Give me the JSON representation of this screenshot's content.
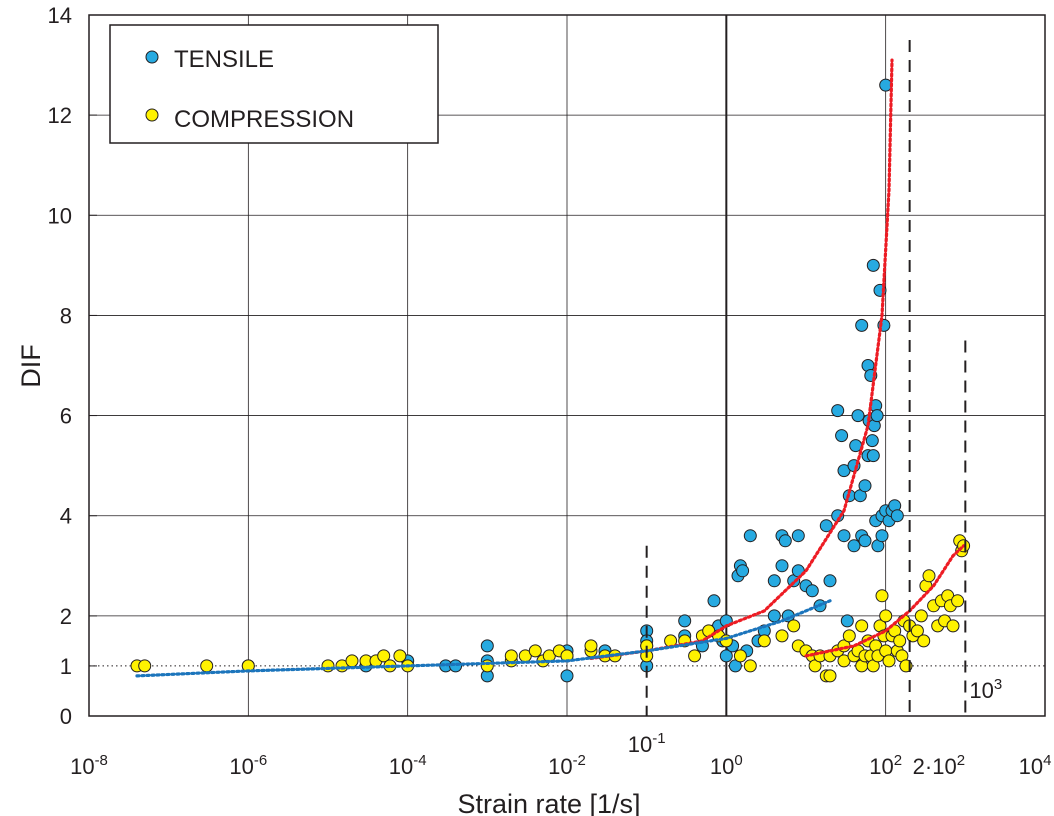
{
  "chart_data": {
    "type": "scatter",
    "title": "",
    "xlabel": "Strain rate [1/s]",
    "ylabel": "DIF",
    "x_scale": "log",
    "xlim": [
      1e-08,
      10000.0
    ],
    "ylim": [
      0,
      14
    ],
    "x_tick_labels": [
      {
        "x": 1e-08,
        "base": "10",
        "exp": "-8"
      },
      {
        "x": 1e-06,
        "base": "10",
        "exp": "-6"
      },
      {
        "x": 0.0001,
        "base": "10",
        "exp": "-4"
      },
      {
        "x": 0.01,
        "base": "10",
        "exp": "-2"
      },
      {
        "x": 1.0,
        "base": "10",
        "exp": "0"
      },
      {
        "x": 100.0,
        "base": "10",
        "exp": "2"
      },
      {
        "x": 10000.0,
        "base": "10",
        "exp": "4"
      }
    ],
    "y_ticks": [
      0,
      1,
      2,
      4,
      6,
      8,
      10,
      12,
      14
    ],
    "grid": true,
    "legend_position": "top-left",
    "colors": {
      "tensile": "#27aae1",
      "compression": "#fff200",
      "marker_edge": "#231f20",
      "fit_red": "#ed1c24",
      "fit_blue": "#1c75bc",
      "grid": "#231f20"
    },
    "annotations": [
      {
        "id": "line-0.1",
        "x": 0.1,
        "y_top": 3.4,
        "base": "10",
        "exp": "-1"
      },
      {
        "id": "line-200",
        "x": 200,
        "y_top": 13.5,
        "label": "2·10",
        "exp": "2"
      },
      {
        "id": "line-1000",
        "x": 1000,
        "y_top": 7.5,
        "base": "10",
        "exp": "3"
      }
    ],
    "reference_line": {
      "y": 1,
      "style": "dotted"
    },
    "series": [
      {
        "name": "TENSILE",
        "marker": "circle",
        "color": "#27aae1",
        "points": [
          [
            1e-06,
            1.0
          ],
          [
            3e-05,
            1.0
          ],
          [
            0.0003,
            1.0
          ],
          [
            0.0004,
            1.0
          ],
          [
            0.0001,
            1.1
          ],
          [
            0.001,
            1.1
          ],
          [
            0.001,
            1.4
          ],
          [
            0.001,
            0.8
          ],
          [
            0.01,
            1.3
          ],
          [
            0.01,
            0.8
          ],
          [
            0.01,
            1.2
          ],
          [
            0.03,
            1.3
          ],
          [
            0.1,
            1.7
          ],
          [
            0.1,
            1.5
          ],
          [
            0.1,
            1.4
          ],
          [
            0.1,
            1.0
          ],
          [
            0.3,
            1.9
          ],
          [
            0.3,
            1.6
          ],
          [
            0.5,
            1.4
          ],
          [
            0.7,
            2.3
          ],
          [
            0.7,
            1.7
          ],
          [
            0.8,
            1.8
          ],
          [
            0.9,
            1.5
          ],
          [
            1.0,
            1.2
          ],
          [
            1.0,
            1.9
          ],
          [
            1.2,
            1.4
          ],
          [
            1.3,
            1.0
          ],
          [
            1.4,
            2.8
          ],
          [
            1.5,
            3.0
          ],
          [
            1.6,
            2.9
          ],
          [
            1.8,
            1.3
          ],
          [
            2.0,
            3.6
          ],
          [
            2.5,
            1.5
          ],
          [
            3,
            1.7
          ],
          [
            4,
            2.0
          ],
          [
            4,
            2.7
          ],
          [
            5,
            3.0
          ],
          [
            5,
            3.6
          ],
          [
            5.5,
            3.5
          ],
          [
            6,
            2.0
          ],
          [
            7,
            2.7
          ],
          [
            8,
            2.9
          ],
          [
            8,
            3.6
          ],
          [
            10,
            2.6
          ],
          [
            12,
            2.5
          ],
          [
            15,
            2.2
          ],
          [
            18,
            3.8
          ],
          [
            20,
            2.7
          ],
          [
            25,
            6.1
          ],
          [
            25,
            4.0
          ],
          [
            28,
            5.6
          ],
          [
            30,
            3.6
          ],
          [
            30,
            4.9
          ],
          [
            33,
            1.9
          ],
          [
            35,
            4.4
          ],
          [
            40,
            3.4
          ],
          [
            40,
            5.0
          ],
          [
            42,
            5.4
          ],
          [
            45,
            6.0
          ],
          [
            48,
            4.4
          ],
          [
            50,
            7.8
          ],
          [
            50,
            3.6
          ],
          [
            55,
            4.6
          ],
          [
            55,
            3.5
          ],
          [
            60,
            5.2
          ],
          [
            60,
            7.0
          ],
          [
            62,
            5.9
          ],
          [
            65,
            6.8
          ],
          [
            68,
            5.5
          ],
          [
            70,
            9.0
          ],
          [
            70,
            5.2
          ],
          [
            72,
            5.8
          ],
          [
            75,
            6.2
          ],
          [
            75,
            3.9
          ],
          [
            78,
            6.0
          ],
          [
            80,
            3.4
          ],
          [
            85,
            8.5
          ],
          [
            90,
            4.0
          ],
          [
            90,
            3.6
          ],
          [
            95,
            7.8
          ],
          [
            100,
            12.6
          ],
          [
            100,
            4.1
          ],
          [
            110,
            3.9
          ],
          [
            120,
            4.1
          ],
          [
            130,
            4.2
          ],
          [
            140,
            4.0
          ]
        ]
      },
      {
        "name": "COMPRESSION",
        "marker": "circle",
        "color": "#fff200",
        "points": [
          [
            4e-08,
            1.0
          ],
          [
            5e-08,
            1.0
          ],
          [
            3e-07,
            1.0
          ],
          [
            1e-06,
            1.0
          ],
          [
            1e-05,
            1.0
          ],
          [
            1.5e-05,
            1.0
          ],
          [
            2e-05,
            1.1
          ],
          [
            3e-05,
            1.1
          ],
          [
            4e-05,
            1.1
          ],
          [
            5e-05,
            1.2
          ],
          [
            6e-05,
            1.0
          ],
          [
            8e-05,
            1.2
          ],
          [
            0.0001,
            1.0
          ],
          [
            0.001,
            1.0
          ],
          [
            0.002,
            1.1
          ],
          [
            0.002,
            1.2
          ],
          [
            0.003,
            1.2
          ],
          [
            0.004,
            1.3
          ],
          [
            0.005,
            1.1
          ],
          [
            0.006,
            1.2
          ],
          [
            0.008,
            1.3
          ],
          [
            0.01,
            1.2
          ],
          [
            0.02,
            1.3
          ],
          [
            0.02,
            1.4
          ],
          [
            0.03,
            1.2
          ],
          [
            0.04,
            1.2
          ],
          [
            0.1,
            1.4
          ],
          [
            0.1,
            1.2
          ],
          [
            0.2,
            1.5
          ],
          [
            0.3,
            1.5
          ],
          [
            0.4,
            1.2
          ],
          [
            0.5,
            1.6
          ],
          [
            0.6,
            1.7
          ],
          [
            0.8,
            1.6
          ],
          [
            1.0,
            1.5
          ],
          [
            1.5,
            1.2
          ],
          [
            2,
            1.0
          ],
          [
            3,
            1.5
          ],
          [
            5,
            1.6
          ],
          [
            7,
            1.8
          ],
          [
            8,
            1.4
          ],
          [
            10,
            1.3
          ],
          [
            12,
            1.2
          ],
          [
            13,
            1.0
          ],
          [
            15,
            1.2
          ],
          [
            18,
            0.8
          ],
          [
            20,
            0.8
          ],
          [
            20,
            1.2
          ],
          [
            25,
            1.3
          ],
          [
            30,
            1.4
          ],
          [
            30,
            1.1
          ],
          [
            35,
            1.6
          ],
          [
            40,
            1.2
          ],
          [
            45,
            1.3
          ],
          [
            50,
            1.8
          ],
          [
            50,
            1.0
          ],
          [
            55,
            1.2
          ],
          [
            60,
            1.5
          ],
          [
            65,
            1.2
          ],
          [
            70,
            1.0
          ],
          [
            75,
            1.4
          ],
          [
            80,
            1.2
          ],
          [
            85,
            1.8
          ],
          [
            90,
            2.4
          ],
          [
            95,
            1.6
          ],
          [
            100,
            1.3
          ],
          [
            100,
            2.0
          ],
          [
            110,
            1.1
          ],
          [
            120,
            1.6
          ],
          [
            130,
            1.7
          ],
          [
            140,
            1.3
          ],
          [
            150,
            1.5
          ],
          [
            160,
            1.2
          ],
          [
            170,
            1.9
          ],
          [
            180,
            1.0
          ],
          [
            200,
            1.8
          ],
          [
            220,
            1.6
          ],
          [
            250,
            1.7
          ],
          [
            280,
            2.0
          ],
          [
            300,
            1.5
          ],
          [
            320,
            2.6
          ],
          [
            350,
            2.8
          ],
          [
            400,
            2.2
          ],
          [
            450,
            1.8
          ],
          [
            500,
            2.3
          ],
          [
            550,
            1.9
          ],
          [
            600,
            2.4
          ],
          [
            650,
            2.2
          ],
          [
            700,
            1.8
          ],
          [
            800,
            2.3
          ],
          [
            850,
            3.5
          ],
          [
            900,
            3.3
          ],
          [
            950,
            3.4
          ]
        ]
      }
    ],
    "fit_lines": [
      {
        "id": "fit-red",
        "points": [
          [
            0.02,
            1.15
          ],
          [
            0.1,
            1.3
          ],
          [
            0.5,
            1.5
          ],
          [
            1.0,
            1.8
          ],
          [
            3,
            2.1
          ],
          [
            10,
            2.9
          ],
          [
            30,
            4.1
          ],
          [
            60,
            5.8
          ],
          [
            90,
            8.0
          ],
          [
            110,
            10.5
          ],
          [
            120,
            13.1
          ]
        ]
      },
      {
        "id": "fit-blue",
        "points": [
          [
            4e-08,
            0.8
          ],
          [
            1e-06,
            0.9
          ],
          [
            0.0001,
            1.0
          ],
          [
            0.01,
            1.1
          ],
          [
            0.1,
            1.3
          ],
          [
            1,
            1.55
          ],
          [
            5,
            1.9
          ],
          [
            20,
            2.3
          ]
        ]
      },
      {
        "id": "fit-yellow",
        "points": [
          [
            10,
            1.2
          ],
          [
            40,
            1.4
          ],
          [
            100,
            1.7
          ],
          [
            200,
            2.1
          ],
          [
            400,
            2.6
          ],
          [
            700,
            3.2
          ],
          [
            950,
            3.4
          ]
        ]
      }
    ]
  }
}
